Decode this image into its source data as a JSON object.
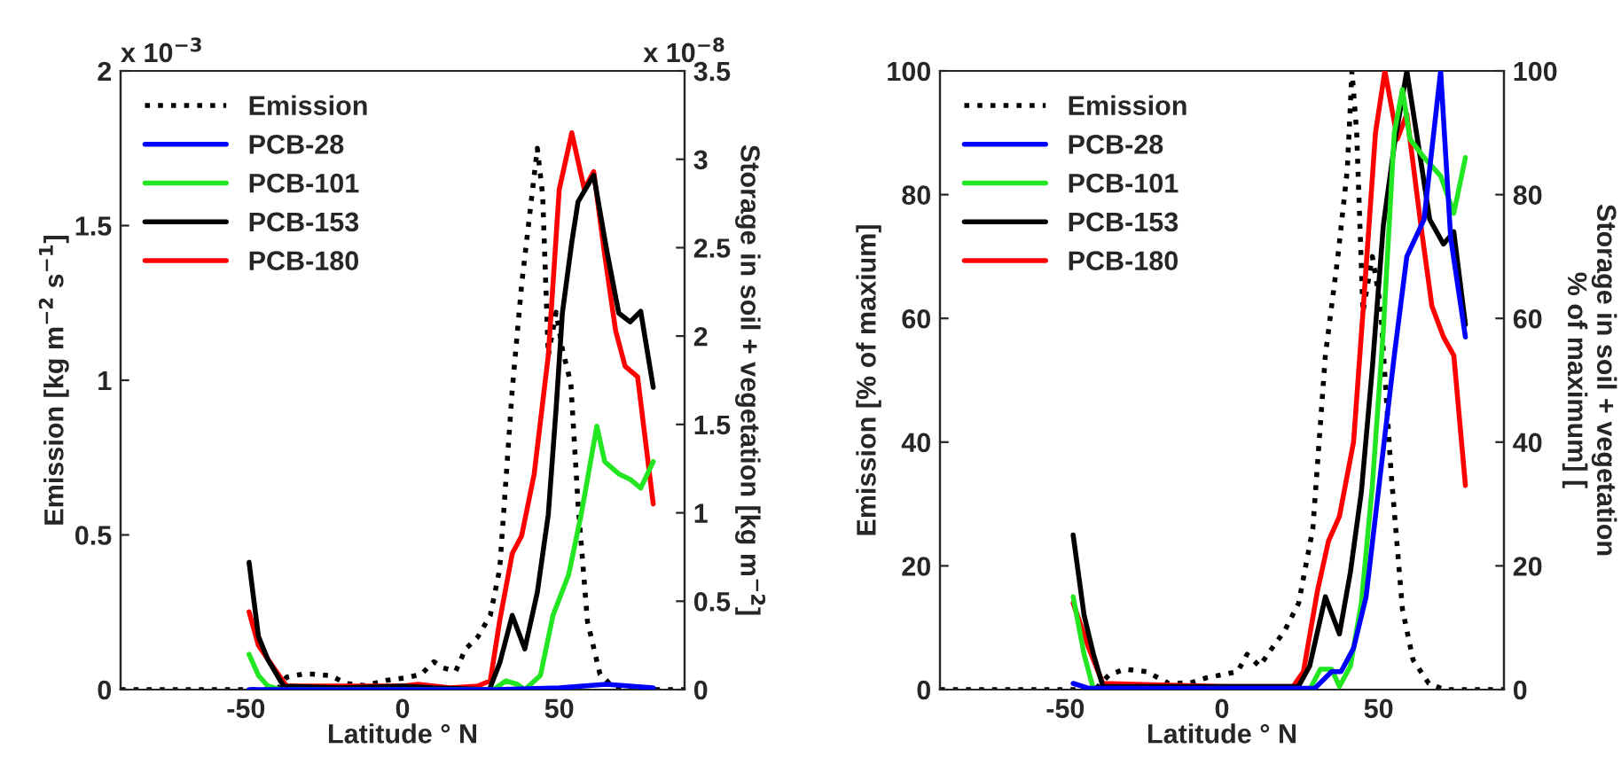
{
  "chart_data": [
    {
      "type": "line",
      "xlabel": "Latitude ° N",
      "ylabel": "Emission [kg m$^{−2}$ s$^{−1}$]",
      "y2label": "Storage in soil + vegetation [kg m$^{−2}$]",
      "annotations": [
        "x 10$^{−3}$",
        "x 10$^{−8}$"
      ],
      "xlim": [
        -90,
        90
      ],
      "xticks": [
        -50,
        0,
        50
      ],
      "ylim": [
        0,
        2
      ],
      "yticks": [
        0,
        0.5,
        1,
        1.5,
        2
      ],
      "y2lim": [
        0,
        3.5
      ],
      "y2ticks": [
        0,
        0.5,
        1,
        1.5,
        2,
        2.5,
        3,
        3.5
      ],
      "grid": false,
      "legend": "top left",
      "series": [
        {
          "name": "Emission",
          "color": "#000000",
          "line_style": "dotted",
          "x": [
            -90,
            -40,
            -37,
            -32,
            -29,
            -23,
            -18,
            -12,
            -5,
            2,
            6,
            10,
            13,
            17,
            20,
            24,
            28,
            31,
            35,
            38,
            43,
            44.7,
            46.5,
            49,
            51,
            53.7,
            56,
            59,
            63,
            67,
            70,
            90
          ],
          "values": [
            0,
            0,
            0.04,
            0.05,
            0.05,
            0.045,
            0.02,
            0.013,
            0.03,
            0.04,
            0.05,
            0.09,
            0.07,
            0.06,
            0.13,
            0.17,
            0.24,
            0.39,
            0.97,
            1.31,
            1.75,
            1.6,
            1.08,
            1.22,
            1.1,
            0.99,
            0.6,
            0.22,
            0.05,
            0.01,
            0,
            0
          ]
        },
        {
          "name": "PCB-28",
          "color": "#0000ff",
          "axis": "y2",
          "x": [
            -49,
            -40,
            0,
            30,
            50,
            65,
            80
          ],
          "values": [
            0,
            0,
            0,
            0,
            0.01,
            0.03,
            0.01
          ]
        },
        {
          "name": "PCB-101",
          "color": "#22e622",
          "axis": "y2",
          "x": [
            -49,
            -46,
            -43,
            -39,
            29,
            33,
            36.6,
            39,
            44,
            48,
            53,
            57,
            62,
            64.5,
            69,
            72.6,
            76,
            80
          ],
          "values": [
            0.2,
            0.08,
            0.02,
            0,
            0,
            0.05,
            0.03,
            0,
            0.08,
            0.42,
            0.65,
            0.99,
            1.49,
            1.29,
            1.22,
            1.19,
            1.14,
            1.29
          ]
        },
        {
          "name": "PCB-153",
          "color": "#000000",
          "axis": "y2",
          "x": [
            -49,
            -46,
            -43,
            -38,
            -20,
            0,
            10,
            27.7,
            31,
            35,
            39,
            43,
            46.5,
            49,
            51,
            54,
            56,
            61,
            65,
            69,
            72.6,
            76,
            80
          ],
          "values": [
            0.72,
            0.3,
            0.17,
            0.02,
            0.01,
            0.02,
            0.01,
            0,
            0.15,
            0.42,
            0.23,
            0.55,
            0.99,
            1.59,
            2.13,
            2.53,
            2.76,
            2.91,
            2.5,
            2.13,
            2.08,
            2.14,
            1.71
          ]
        },
        {
          "name": "PCB-180",
          "color": "#ff0000",
          "axis": "y2",
          "x": [
            -49,
            -46,
            -41,
            -37,
            -20,
            0,
            5,
            15,
            24,
            28,
            31,
            35,
            38,
            42,
            46.5,
            50,
            54,
            58,
            61,
            64.5,
            68,
            71,
            75,
            80
          ],
          "values": [
            0.44,
            0.25,
            0.12,
            0.02,
            0.02,
            0.02,
            0.03,
            0.01,
            0.02,
            0.05,
            0.39,
            0.77,
            0.87,
            1.22,
            1.89,
            2.83,
            3.15,
            2.83,
            2.93,
            2.46,
            2.03,
            1.83,
            1.77,
            1.05
          ]
        }
      ]
    },
    {
      "type": "line",
      "xlabel": "Latitude ° N",
      "ylabel": "Emission [% of maxium]",
      "y2label": "Storage in soil + vegetation\n% of maximum] [",
      "xlim": [
        -90,
        90
      ],
      "xticks": [
        -50,
        0,
        50
      ],
      "ylim": [
        0,
        100
      ],
      "yticks": [
        0,
        20,
        40,
        60,
        80,
        100
      ],
      "y2lim": [
        0,
        100
      ],
      "y2ticks": [
        0,
        20,
        40,
        60,
        80,
        100
      ],
      "grid": false,
      "legend": "top left",
      "series": [
        {
          "name": "Emission",
          "color": "#000000",
          "line_style": "dotted",
          "x": [
            -90,
            -40.5,
            -36,
            -31,
            -24,
            -17,
            -10,
            -5,
            0,
            5,
            8,
            12,
            16,
            20,
            24.5,
            29,
            33,
            37,
            40,
            41.5,
            43,
            45,
            48,
            50.6,
            54,
            57.6,
            61,
            66,
            71,
            90
          ],
          "values": [
            0,
            0,
            2.4,
            3.3,
            2.9,
            1,
            1.1,
            1.9,
            2.4,
            2.9,
            5.7,
            3.8,
            6.7,
            9.5,
            14,
            26,
            54,
            70,
            84,
            100,
            90,
            61,
            70,
            62,
            35,
            13,
            4.8,
            1,
            0,
            0
          ]
        },
        {
          "name": "PCB-28",
          "color": "#0000ff",
          "axis": "y2",
          "x": [
            -47.5,
            -42.5,
            29.6,
            35,
            38,
            42,
            46,
            50.6,
            55,
            59,
            64.5,
            69.8,
            73,
            77.7
          ],
          "values": [
            1,
            0.2,
            0.2,
            2.9,
            2.9,
            6.7,
            15,
            35,
            54,
            70,
            76,
            100,
            73,
            57
          ]
        },
        {
          "name": "PCB-101",
          "color": "#22e622",
          "axis": "y2",
          "x": [
            -47.5,
            -44,
            -41,
            28,
            31.4,
            35,
            37.5,
            41,
            44.5,
            48,
            51.5,
            55,
            57.6,
            60,
            64.5,
            69.8,
            74,
            77.7
          ],
          "values": [
            15,
            5.7,
            0,
            0,
            3.3,
            3.3,
            0.5,
            3.8,
            14,
            33,
            58,
            90,
            97,
            89,
            86,
            83,
            77,
            86
          ]
        },
        {
          "name": "PCB-153",
          "color": "#000000",
          "axis": "y2",
          "x": [
            -47.5,
            -44,
            -41,
            -38,
            24.4,
            28,
            33,
            37.5,
            41,
            44.5,
            48,
            51.5,
            55,
            59,
            63,
            66.3,
            70.7,
            74,
            77.7
          ],
          "values": [
            25,
            12,
            5.7,
            0.5,
            0.5,
            3.8,
            15,
            9,
            19,
            32,
            52,
            75,
            88,
            100,
            87,
            76,
            72,
            74,
            59
          ]
        },
        {
          "name": "PCB-180",
          "color": "#ff0000",
          "axis": "y2",
          "x": [
            -47.5,
            -42.5,
            -38,
            0,
            22.7,
            26,
            30.5,
            34,
            37.5,
            42,
            45,
            49,
            52,
            56,
            59,
            63.5,
            67,
            70.7,
            74,
            77.7
          ],
          "values": [
            14,
            6.7,
            1,
            0.5,
            0.5,
            2.9,
            16,
            24,
            28,
            40,
            61,
            90,
            100,
            89,
            93,
            75,
            62,
            57,
            54,
            33
          ]
        }
      ]
    }
  ]
}
